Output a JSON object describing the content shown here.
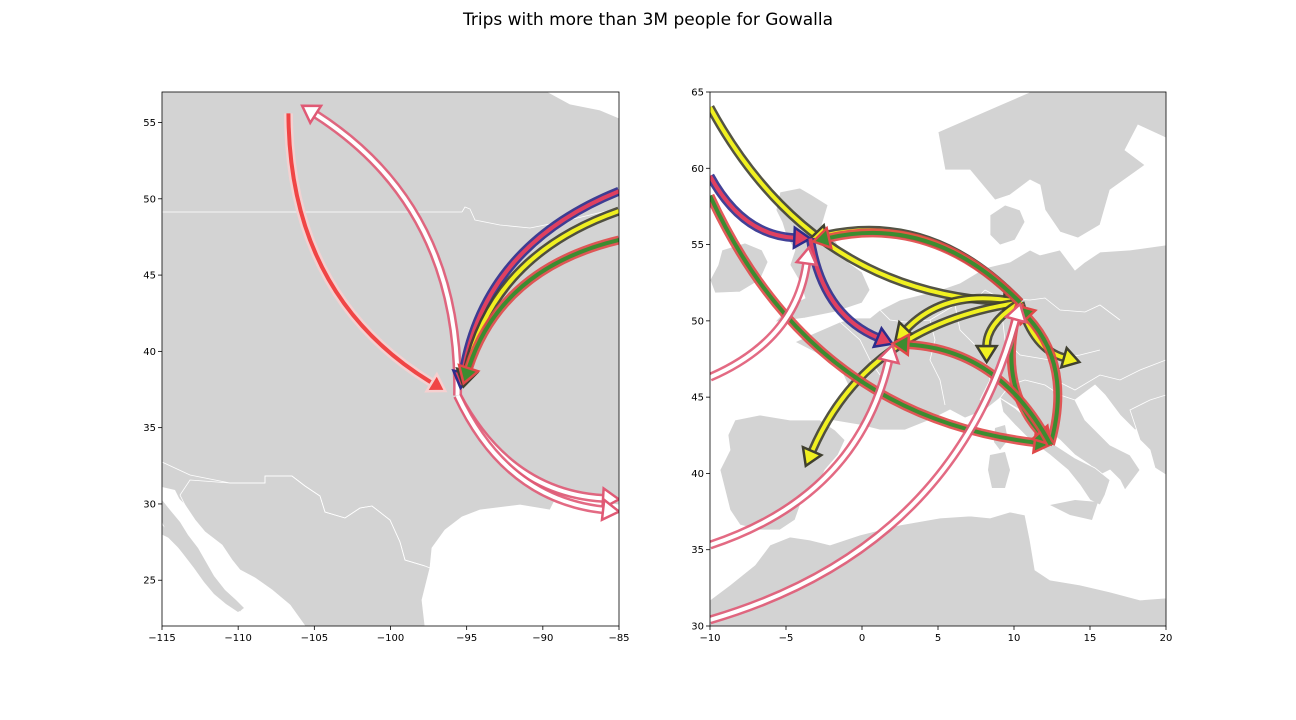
{
  "figure": {
    "title": "Trips with more than 3M people for Gowalla"
  },
  "chart_data": [
    {
      "type": "map",
      "region": "North America",
      "xlim": [
        -115,
        -85
      ],
      "ylim": [
        22,
        57
      ],
      "xticks": [
        -115,
        -110,
        -105,
        -100,
        -95,
        -90,
        -85
      ],
      "yticks": [
        25,
        30,
        35,
        40,
        45,
        50,
        55
      ],
      "xtick_labels": [
        "−115",
        "−110",
        "−105",
        "−100",
        "−95",
        "−90",
        "−85"
      ],
      "ytick_labels": [
        "25",
        "30",
        "35",
        "40",
        "45",
        "50",
        "55"
      ],
      "land_color": "#d3d3d3",
      "border_color": "#ffffff",
      "trips": [
        {
          "from": [
            -95.6,
            37.1
          ],
          "to": [
            -105.8,
            56.1
          ],
          "color": "#e05a75",
          "edge": "#e05a75",
          "fill": "#ffffff"
        },
        {
          "from": [
            -106.7,
            55.6
          ],
          "to": [
            -96.4,
            37.4
          ],
          "color": "#f04545",
          "edge": "#f6d0d0",
          "fill": "#f04545"
        },
        {
          "from": [
            -85,
            50.5
          ],
          "to": [
            -95.4,
            37.6
          ],
          "color": "#303090",
          "edge": "#2c2c8c",
          "fill": "#e04060"
        },
        {
          "from": [
            -85,
            49.2
          ],
          "to": [
            -95.2,
            37.7
          ],
          "color": "#f0f020",
          "edge": "#404030",
          "fill": "#f0f020"
        },
        {
          "from": [
            -85,
            47.3
          ],
          "to": [
            -95.2,
            37.9
          ],
          "color": "#3c8c30",
          "edge": "#e04848",
          "fill": "#3c8c30"
        },
        {
          "from": [
            -95.6,
            37.1
          ],
          "to": [
            -85,
            30.3
          ],
          "color": "#e05a75",
          "edge": "#e05a75",
          "fill": "#ffffff"
        },
        {
          "from": [
            -95.6,
            37.1
          ],
          "to": [
            -85,
            29.5
          ],
          "color": "#e05a75",
          "edge": "#e05a75",
          "fill": "#ffffff"
        }
      ]
    },
    {
      "type": "map",
      "region": "Europe",
      "xlim": [
        -10,
        20
      ],
      "ylim": [
        30,
        65
      ],
      "xticks": [
        -10,
        -5,
        0,
        5,
        10,
        15,
        20
      ],
      "yticks": [
        30,
        35,
        40,
        45,
        50,
        55,
        60,
        65
      ],
      "xtick_labels": [
        "−10",
        "−5",
        "0",
        "5",
        "10",
        "15",
        "20"
      ],
      "ytick_labels": [
        "30",
        "35",
        "40",
        "45",
        "50",
        "55",
        "60",
        "65"
      ],
      "land_color": "#d3d3d3",
      "border_color": "#ffffff",
      "trips": [
        {
          "from": [
            -10,
            64
          ],
          "to": [
            10.4,
            51.2
          ],
          "color": "#f0f020",
          "edge": "#404030",
          "fill": "#f0f020"
        },
        {
          "from": [
            10.4,
            51.2
          ],
          "to": [
            -3.4,
            55.4
          ],
          "color": "#f0f020",
          "edge": "#404030",
          "fill": "#f0f020"
        },
        {
          "from": [
            10.4,
            51.2
          ],
          "to": [
            2.2,
            48.7
          ],
          "color": "#f0f020",
          "edge": "#404030",
          "fill": "#f0f020"
        },
        {
          "from": [
            10.4,
            51.2
          ],
          "to": [
            -3.7,
            40.5
          ],
          "color": "#f0f020",
          "edge": "#404030",
          "fill": "#f0f020"
        },
        {
          "from": [
            10.4,
            51.2
          ],
          "to": [
            14.3,
            47.3
          ],
          "color": "#f0f020",
          "edge": "#404030",
          "fill": "#f0f020"
        },
        {
          "from": [
            10.4,
            51.2
          ],
          "to": [
            8.2,
            47.3
          ],
          "color": "#f0f020",
          "edge": "#404030",
          "fill": "#f0f020"
        },
        {
          "from": [
            -10,
            59.5
          ],
          "to": [
            -3.4,
            55.4
          ],
          "color": "#303090",
          "edge": "#2c2c8c",
          "fill": "#e04060"
        },
        {
          "from": [
            -3.4,
            55.4
          ],
          "to": [
            2.0,
            48.5
          ],
          "color": "#303090",
          "edge": "#2c2c8c",
          "fill": "#e04060"
        },
        {
          "from": [
            -10,
            58.2
          ],
          "to": [
            12.4,
            41.9
          ],
          "color": "#3c8c30",
          "edge": "#e04848",
          "fill": "#3c8c30"
        },
        {
          "from": [
            12.4,
            41.9
          ],
          "to": [
            10.2,
            51.0
          ],
          "color": "#3c8c30",
          "edge": "#e04848",
          "fill": "#3c8c30"
        },
        {
          "from": [
            10.4,
            51.2
          ],
          "to": [
            12.4,
            41.9
          ],
          "color": "#3c8c30",
          "edge": "#e04848",
          "fill": "#3c8c30"
        },
        {
          "from": [
            10.4,
            51.2
          ],
          "to": [
            -3.2,
            55.2
          ],
          "color": "#3c8c30",
          "edge": "#e04848",
          "fill": "#3c8c30"
        },
        {
          "from": [
            12.4,
            41.9
          ],
          "to": [
            2.0,
            48.5
          ],
          "color": "#3c8c30",
          "edge": "#e04848",
          "fill": "#3c8c30"
        },
        {
          "from": [
            -10,
            46.3
          ],
          "to": [
            -3.5,
            54.8
          ],
          "color": "#e05a75",
          "edge": "#e05a75",
          "fill": "#ffffff"
        },
        {
          "from": [
            -10,
            35.3
          ],
          "to": [
            2.0,
            48.4
          ],
          "color": "#e05a75",
          "edge": "#e05a75",
          "fill": "#ffffff"
        },
        {
          "from": [
            -10,
            30.4
          ],
          "to": [
            10.4,
            51.1
          ],
          "color": "#e05a75",
          "edge": "#e05a75",
          "fill": "#ffffff"
        }
      ]
    }
  ]
}
